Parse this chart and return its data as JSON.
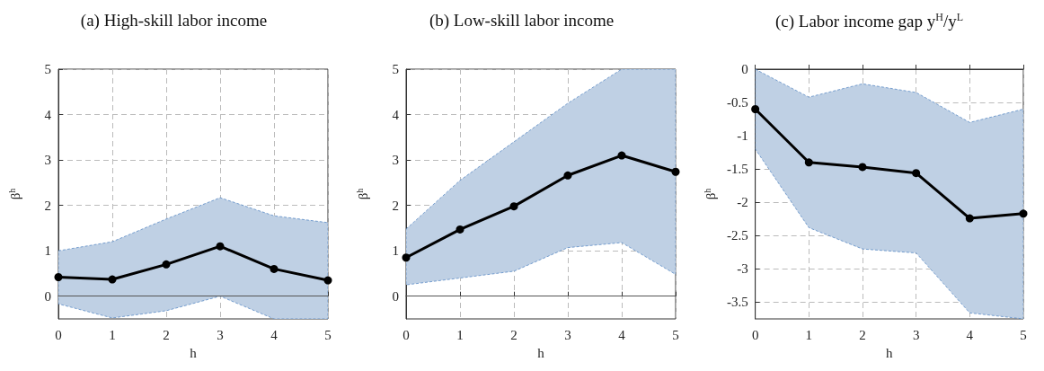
{
  "chart_data": [
    {
      "type": "line",
      "title": "(a) High-skill labor income",
      "xlabel": "h",
      "ylabel": "β$^{h}$",
      "x": [
        0,
        1,
        2,
        3,
        4,
        5
      ],
      "xlim": [
        0,
        5
      ],
      "xticks": [
        0,
        1,
        2,
        3,
        4,
        5
      ],
      "ylim": [
        -0.5,
        5
      ],
      "yticks": [
        0,
        1,
        2,
        3,
        4,
        5
      ],
      "grid": true,
      "marker": "circle",
      "line_style": "solid",
      "series": [
        {
          "color": "#000000",
          "values": [
            0.42,
            0.37,
            0.7,
            1.1,
            0.6,
            0.35
          ],
          "lower": [
            -0.17,
            -0.48,
            -0.32,
            0.0,
            -0.5,
            -0.5
          ],
          "upper": [
            1.0,
            1.2,
            1.7,
            2.17,
            1.77,
            1.62
          ]
        }
      ],
      "ref_lines": [
        {
          "axis": "y",
          "value": 0,
          "color": "#555555"
        }
      ]
    },
    {
      "type": "line",
      "title": "(b) Low-skill labor income",
      "xlabel": "h",
      "ylabel": "β$^{h}$",
      "x": [
        0,
        1,
        2,
        3,
        4,
        5
      ],
      "xlim": [
        0,
        5
      ],
      "xticks": [
        0,
        1,
        2,
        3,
        4,
        5
      ],
      "ylim": [
        -0.5,
        5
      ],
      "yticks": [
        0,
        1,
        2,
        3,
        4,
        5
      ],
      "grid": true,
      "marker": "circle",
      "line_style": "solid",
      "series": [
        {
          "color": "#000000",
          "values": [
            0.85,
            1.47,
            1.98,
            2.66,
            3.1,
            2.74
          ],
          "lower": [
            0.25,
            0.4,
            0.55,
            1.07,
            1.18,
            0.48
          ],
          "upper": [
            1.48,
            2.55,
            3.4,
            4.25,
            5.0,
            5.0
          ]
        }
      ],
      "ref_lines": [
        {
          "axis": "y",
          "value": 0,
          "color": "#555555"
        }
      ]
    },
    {
      "type": "line",
      "title": "(c) Labor income gap y$^{H}$/y$^{L}$",
      "xlabel": "h",
      "ylabel": "β$^{h}$",
      "x": [
        0,
        1,
        2,
        3,
        4,
        5
      ],
      "xlim": [
        0,
        5
      ],
      "xticks": [
        0,
        1,
        2,
        3,
        4,
        5
      ],
      "ylim": [
        -3.75,
        0
      ],
      "yticks": [
        -3.5,
        -3,
        -2.5,
        -2,
        -1.5,
        -1,
        -0.5,
        0
      ],
      "grid": true,
      "marker": "circle",
      "line_style": "solid",
      "series": [
        {
          "color": "#000000",
          "values": [
            -0.6,
            -1.4,
            -1.47,
            -1.56,
            -2.24,
            -2.17
          ],
          "lower": [
            -1.2,
            -2.38,
            -2.7,
            -2.76,
            -3.66,
            -3.75
          ],
          "upper": [
            0,
            -0.42,
            -0.22,
            -0.35,
            -0.8,
            -0.6
          ]
        }
      ]
    }
  ]
}
